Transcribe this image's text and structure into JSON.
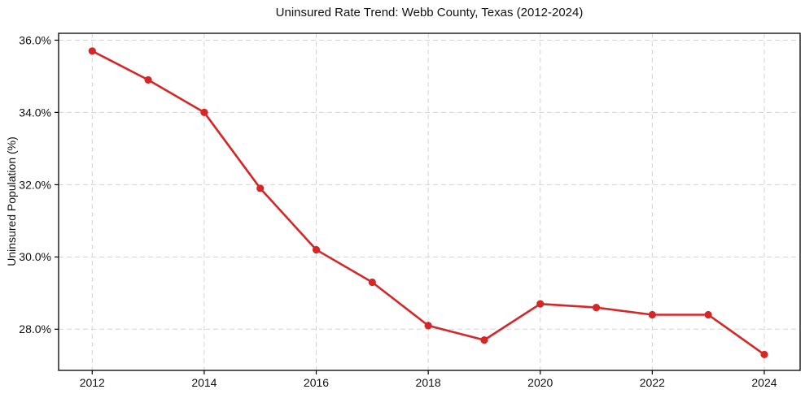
{
  "figure": {
    "background": "#ffffff"
  },
  "chart_data": {
    "type": "line",
    "title": "Uninsured Rate Trend: Webb County, Texas (2012-2024)",
    "xlabel": "",
    "ylabel": "Uninsured Population (%)",
    "x": [
      2012,
      2013,
      2014,
      2015,
      2016,
      2017,
      2018,
      2019,
      2020,
      2021,
      2022,
      2023,
      2024
    ],
    "values": [
      35.7,
      34.9,
      34.0,
      31.9,
      30.2,
      29.3,
      28.1,
      27.7,
      28.7,
      28.6,
      28.4,
      28.4,
      27.3
    ],
    "xlim": [
      2011.4,
      2024.64
    ],
    "ylim": [
      26.86,
      36.19
    ],
    "xticks": {
      "values": [
        2012,
        2014,
        2016,
        2018,
        2020,
        2022,
        2024
      ],
      "labels": [
        "2012",
        "2014",
        "2016",
        "2018",
        "2020",
        "2022",
        "2024"
      ]
    },
    "yticks": {
      "values": [
        28,
        30,
        32,
        34,
        36
      ],
      "labels": [
        "28.0%",
        "30.0%",
        "32.0%",
        "34.0%",
        "36.0%"
      ]
    },
    "grid": true,
    "grid_style": "dashed",
    "legend": false,
    "line_color": "#d62728",
    "marker": "circle",
    "marker_size": 4.6,
    "line_width": 2.6,
    "grid_color": "#d4d4d4",
    "spine_color": "#000000",
    "tick_color": "#000000",
    "text_color": "#111111"
  }
}
